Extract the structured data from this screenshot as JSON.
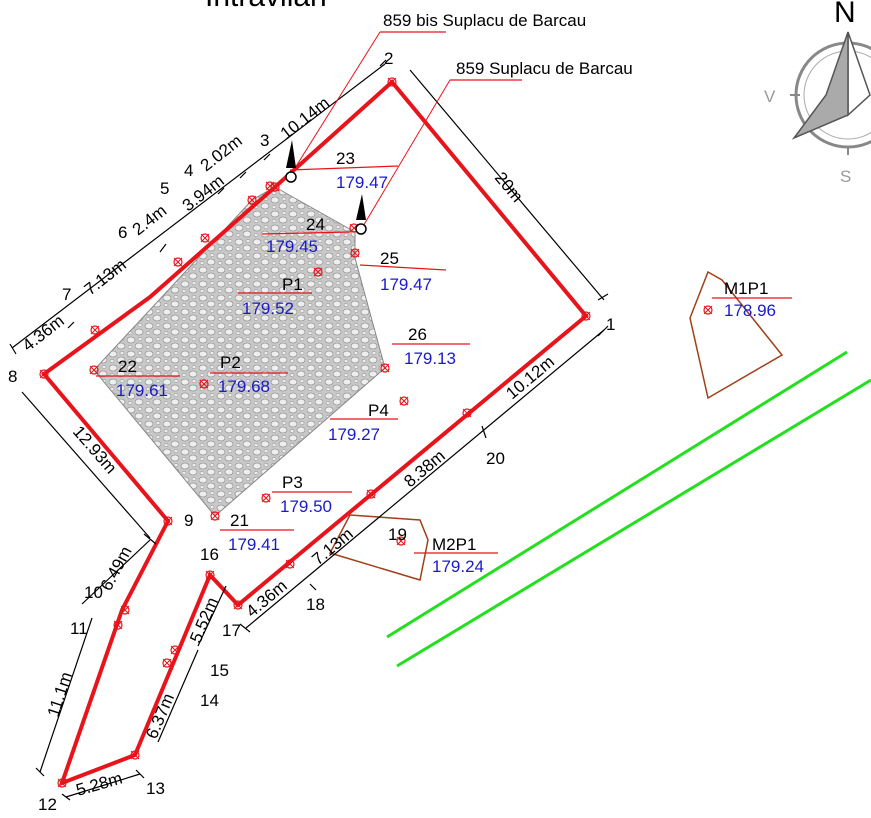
{
  "header": {
    "title": "Intravilan"
  },
  "compass": {
    "north": "N",
    "west": "V",
    "south": "S"
  },
  "parcels": {
    "bis": "859 bis Suplacu de Barcau",
    "main": "859 Suplacu de Barcau"
  },
  "points": {
    "p1": "1",
    "p2": "2",
    "p3": "3",
    "p4": "4",
    "p5": "5",
    "p6": "6",
    "p7": "7",
    "p8": "8",
    "p9": "9",
    "p10": "10",
    "p11": "11",
    "p12": "12",
    "p13": "13",
    "p14": "14",
    "p15": "15",
    "p16": "16",
    "p17": "17",
    "p18": "18",
    "p19": "19",
    "p20": "20",
    "p21": "21",
    "p22": "22",
    "p23": "23",
    "p24": "24",
    "p25": "25",
    "p26": "26"
  },
  "dimensions": {
    "d_2_3": "10.14m",
    "d_3_4": "2.02m",
    "d_4_5": "3.94m",
    "d_5_6": "2.4m",
    "d_6_7": "7.13m",
    "d_7_8": "4.36m",
    "d_2_1": "20m",
    "d_1_20": "10.12m",
    "d_20_18": "8.38m",
    "d_18_17b": "7.13m",
    "d_18_17": "4.36m",
    "d_8_9": "12.93m",
    "d_9_10": "6.49m",
    "d_11_12": "11.1m",
    "d_12_13": "5.28m",
    "d_13_14": "6.37m",
    "d_15_16": "5.52m"
  },
  "stations": {
    "s23": {
      "name": "23",
      "elev": "179.47"
    },
    "s24": {
      "name": "24",
      "elev": "179.45"
    },
    "s25": {
      "name": "25",
      "elev": "179.47"
    },
    "p1": {
      "name": "P1",
      "elev": "179.52"
    },
    "s26": {
      "name": "26",
      "elev": "179.13"
    },
    "s22": {
      "name": "22",
      "elev": "179.61"
    },
    "p2": {
      "name": "P2",
      "elev": "179.68"
    },
    "p4": {
      "name": "P4",
      "elev": "179.27"
    },
    "p3": {
      "name": "P3",
      "elev": "179.50"
    },
    "s21": {
      "name": "21",
      "elev": "179.41"
    },
    "m2p1": {
      "name": "M2P1",
      "elev": "179.24"
    },
    "m1p1": {
      "name": "M1P1",
      "elev": "178.96"
    }
  },
  "colors": {
    "boundary": "#e8141c",
    "fence": "#000000",
    "elevation_text": "#1a1acc",
    "pond": "#a0401a",
    "road": "#22e01e",
    "hatch": "#bdbdbd"
  }
}
